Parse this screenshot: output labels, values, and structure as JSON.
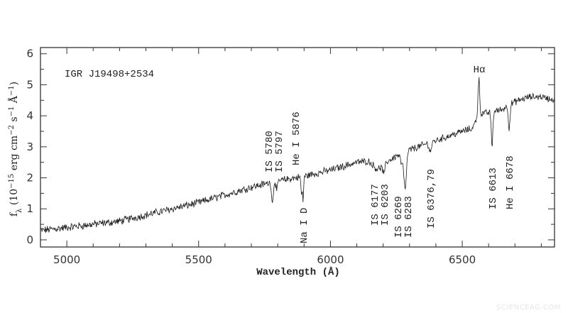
{
  "chart_data": {
    "type": "line",
    "title": "IGR J19498+2534",
    "xlabel": "Wavelength (Å)",
    "ylabel_segments": [
      {
        "t": "f"
      },
      {
        "t": "λ",
        "sub": true
      },
      {
        "t": " (10"
      },
      {
        "t": "−15",
        "sup": true
      },
      {
        "t": " erg cm"
      },
      {
        "t": "−2",
        "sup": true
      },
      {
        "t": " s"
      },
      {
        "t": "−1",
        "sup": true
      },
      {
        "t": " Å"
      },
      {
        "t": "−1",
        "sup": true
      },
      {
        "t": ")"
      }
    ],
    "xlim": [
      4900,
      6850
    ],
    "ylim": [
      -0.23,
      6.2
    ],
    "xticks": [
      5000,
      5500,
      6000,
      6500
    ],
    "xtick_labels": [
      "5000",
      "5500",
      "6000",
      "6500"
    ],
    "xminor_step": 100,
    "yticks": [
      0,
      1,
      2,
      3,
      4,
      5,
      6
    ],
    "ytick_labels": [
      "0",
      "1",
      "2",
      "3",
      "4",
      "5",
      "6"
    ],
    "grid": false,
    "line_color": "#1a1a1a",
    "continuum": {
      "x": [
        4900,
        5000,
        5100,
        5200,
        5300,
        5400,
        5500,
        5600,
        5700,
        5800,
        5900,
        6000,
        6100,
        6150,
        6200,
        6250,
        6300,
        6400,
        6500,
        6540,
        6560,
        6600,
        6650,
        6700,
        6750,
        6800,
        6850
      ],
      "y": [
        0.3,
        0.4,
        0.5,
        0.6,
        0.8,
        1.0,
        1.2,
        1.45,
        1.7,
        1.9,
        2.05,
        2.25,
        2.5,
        2.55,
        2.45,
        2.7,
        2.9,
        3.2,
        3.5,
        3.6,
        4.05,
        4.1,
        4.2,
        4.45,
        4.6,
        4.62,
        4.5
      ]
    },
    "features": [
      {
        "center": 5780,
        "amplitude": -0.7,
        "width": 3
      },
      {
        "center": 5797,
        "amplitude": -0.3,
        "width": 3
      },
      {
        "center": 5890,
        "amplitude": -0.6,
        "width": 2
      },
      {
        "center": 5896,
        "amplitude": -0.8,
        "width": 2
      },
      {
        "center": 6177,
        "amplitude": -0.2,
        "width": 15
      },
      {
        "center": 6203,
        "amplitude": -0.3,
        "width": 4
      },
      {
        "center": 6269,
        "amplitude": -0.3,
        "width": 4
      },
      {
        "center": 6283,
        "amplitude": -1.2,
        "width": 5
      },
      {
        "center": 6379,
        "amplitude": -0.3,
        "width": 4
      },
      {
        "center": 6563,
        "amplitude": 1.15,
        "width": 3
      },
      {
        "center": 6613,
        "amplitude": -1.1,
        "width": 3
      },
      {
        "center": 6678,
        "amplitude": -0.75,
        "width": 3
      }
    ],
    "annotations": [
      {
        "text": "IS 5780"
      },
      {
        "text": "IS 5797"
      },
      {
        "text": "He I 5876"
      },
      {
        "text": "Na I D"
      },
      {
        "text": "IS 6177"
      },
      {
        "text": "IS 6203"
      },
      {
        "text": "IS 6269"
      },
      {
        "text": "IS 6283"
      },
      {
        "text": "IS 6376,79"
      },
      {
        "text": "IS 6613"
      },
      {
        "text": "He I 6678"
      },
      {
        "text": "Hα"
      }
    ]
  },
  "watermark": "SCIENCEAG.COM"
}
